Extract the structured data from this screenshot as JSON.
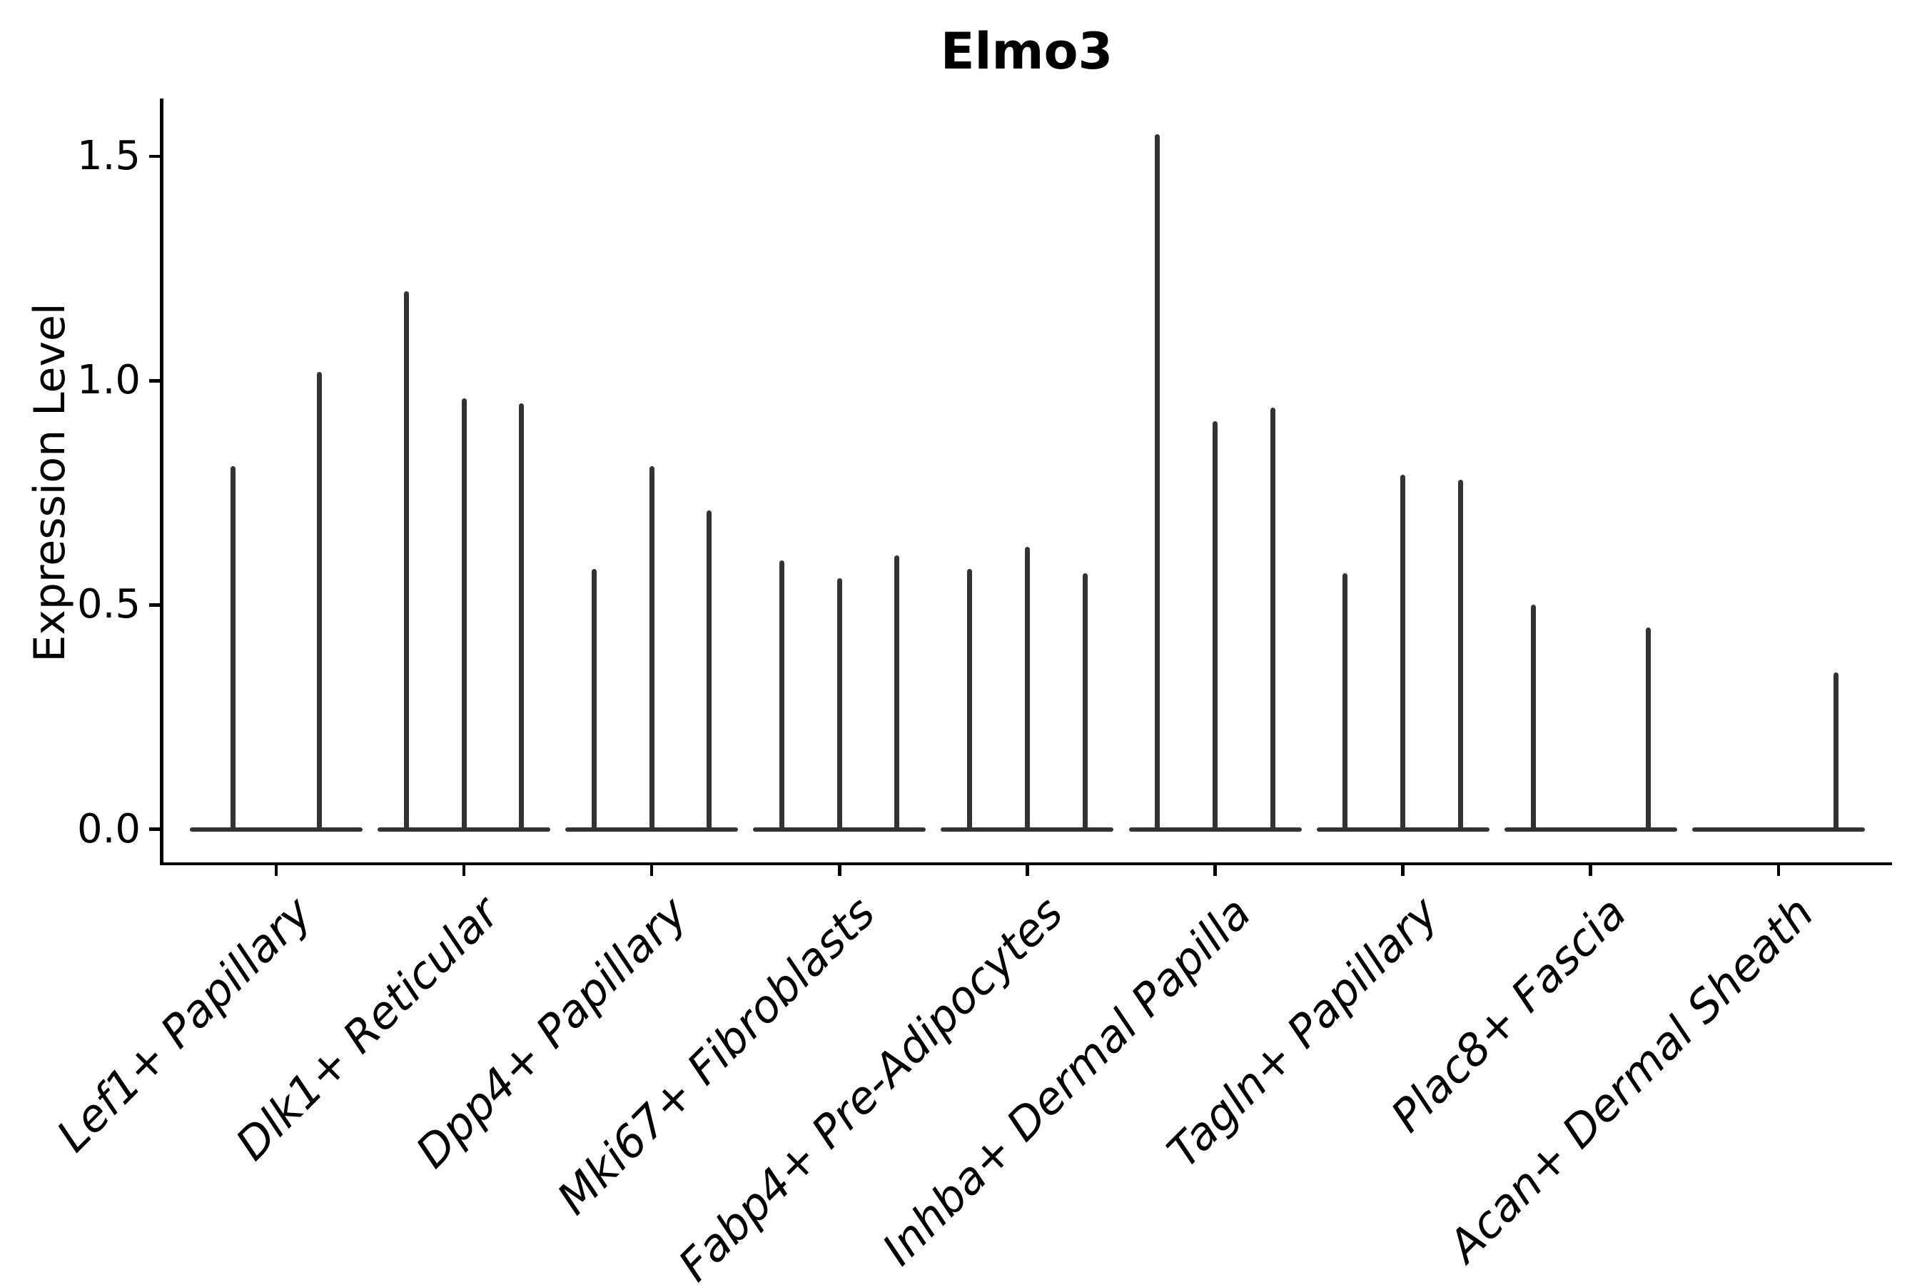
{
  "title": "Elmo3",
  "y_axis": {
    "label": "Expression Level",
    "ticks": [
      "0.0",
      "0.5",
      "1.0",
      "1.5"
    ],
    "tick_values": [
      0.0,
      0.5,
      1.0,
      1.5
    ]
  },
  "colors": {
    "violin": "#333333",
    "axis": "#000000",
    "text": "#000000",
    "background": "#ffffff"
  },
  "chart_data": {
    "type": "violin",
    "title": "Elmo3",
    "xlabel": "",
    "ylabel": "Expression Level",
    "ylim": [
      0,
      1.6
    ],
    "grid": false,
    "legend": null,
    "categories": [
      "Lef1+ Papillary",
      "Dlk1+ Reticular",
      "Dpp4+ Papillary",
      "Mki67+ Fibroblasts",
      "Fabp4+ Pre-Adipocytes",
      "Inhba+ Dermal Papilla",
      "Tagln+ Papillary",
      "Plac8+ Fascia",
      "Acan+ Dermal Sheath"
    ],
    "groups": [
      {
        "category": "Lef1+ Papillary",
        "violin_max_values": [
          0.81,
          1.02
        ]
      },
      {
        "category": "Dlk1+ Reticular",
        "violin_max_values": [
          1.2,
          0.96,
          0.95
        ]
      },
      {
        "category": "Dpp4+ Papillary",
        "violin_max_values": [
          0.58,
          0.81,
          0.71
        ]
      },
      {
        "category": "Mki67+ Fibroblasts",
        "violin_max_values": [
          0.6,
          0.56,
          0.61
        ]
      },
      {
        "category": "Fabp4+ Pre-Adipocytes",
        "violin_max_values": [
          0.58,
          0.63,
          0.57
        ]
      },
      {
        "category": "Inhba+ Dermal Papilla",
        "violin_max_values": [
          1.55,
          0.91,
          0.94
        ]
      },
      {
        "category": "Tagln+ Papillary",
        "violin_max_values": [
          0.57,
          0.79,
          0.78
        ]
      },
      {
        "category": "Plac8+ Fascia",
        "violin_max_values": [
          0.5,
          0.0,
          0.45
        ]
      },
      {
        "category": "Acan+ Dermal Sheath",
        "violin_max_values": [
          0.0,
          0.0,
          0.35
        ]
      }
    ],
    "description": "Violin plot of Elmo3 expression; violins are near-zero-width spikes with flat bases at 0, indicating sparse expression."
  }
}
